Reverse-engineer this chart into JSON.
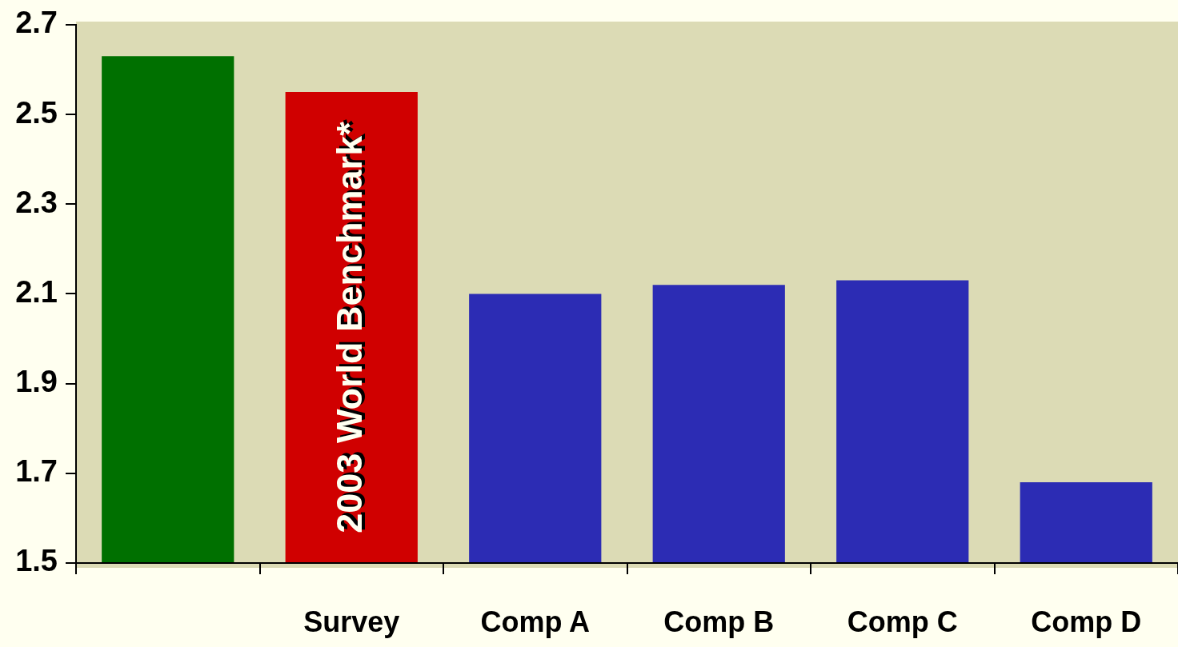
{
  "chart_data": {
    "type": "bar",
    "categories": [
      null,
      "Survey",
      "Comp A",
      "Comp B",
      "Comp C",
      "Comp D"
    ],
    "values": [
      2.63,
      2.55,
      2.1,
      2.12,
      2.13,
      1.68
    ],
    "colors": [
      "#007000",
      "#d00000",
      "#2c2cb4",
      "#2c2cb4",
      "#2c2cb4",
      "#2c2cb4"
    ],
    "ylim": [
      1.5,
      2.7
    ],
    "yticks": [
      1.5,
      1.7,
      1.9,
      2.1,
      2.3,
      2.5,
      2.7
    ],
    "annotations": [
      "2003 World Benchmark*"
    ]
  }
}
